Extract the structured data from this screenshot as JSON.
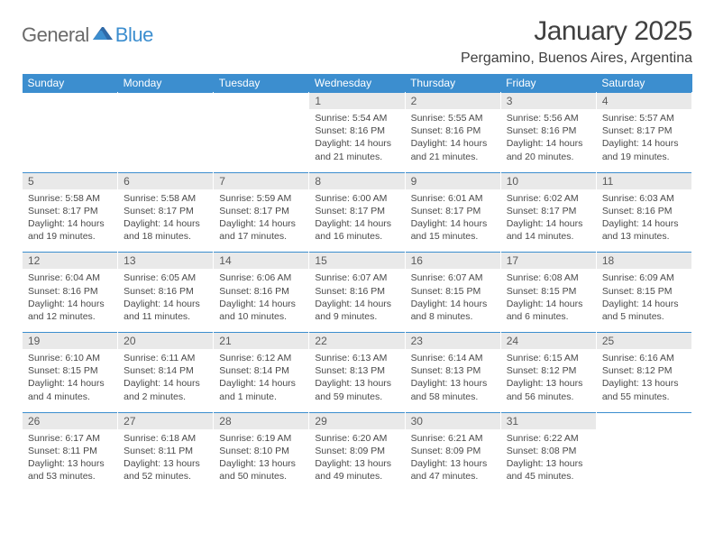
{
  "logo": {
    "text1": "General",
    "text2": "Blue"
  },
  "colors": {
    "header_bg": "#3c8ecf",
    "header_fg": "#ffffff",
    "daynum_bg": "#e9e9e9",
    "rule": "#3c8ecf",
    "text": "#4a4a4a",
    "logo_gray": "#6a6a6a",
    "logo_blue": "#3c8ecf"
  },
  "title": "January 2025",
  "location": "Pergamino, Buenos Aires, Argentina",
  "day_headers": [
    "Sunday",
    "Monday",
    "Tuesday",
    "Wednesday",
    "Thursday",
    "Friday",
    "Saturday"
  ],
  "weeks": [
    [
      null,
      null,
      null,
      {
        "n": "1",
        "sunrise": "5:54 AM",
        "sunset": "8:16 PM",
        "daylight": "14 hours and 21 minutes."
      },
      {
        "n": "2",
        "sunrise": "5:55 AM",
        "sunset": "8:16 PM",
        "daylight": "14 hours and 21 minutes."
      },
      {
        "n": "3",
        "sunrise": "5:56 AM",
        "sunset": "8:16 PM",
        "daylight": "14 hours and 20 minutes."
      },
      {
        "n": "4",
        "sunrise": "5:57 AM",
        "sunset": "8:17 PM",
        "daylight": "14 hours and 19 minutes."
      }
    ],
    [
      {
        "n": "5",
        "sunrise": "5:58 AM",
        "sunset": "8:17 PM",
        "daylight": "14 hours and 19 minutes."
      },
      {
        "n": "6",
        "sunrise": "5:58 AM",
        "sunset": "8:17 PM",
        "daylight": "14 hours and 18 minutes."
      },
      {
        "n": "7",
        "sunrise": "5:59 AM",
        "sunset": "8:17 PM",
        "daylight": "14 hours and 17 minutes."
      },
      {
        "n": "8",
        "sunrise": "6:00 AM",
        "sunset": "8:17 PM",
        "daylight": "14 hours and 16 minutes."
      },
      {
        "n": "9",
        "sunrise": "6:01 AM",
        "sunset": "8:17 PM",
        "daylight": "14 hours and 15 minutes."
      },
      {
        "n": "10",
        "sunrise": "6:02 AM",
        "sunset": "8:17 PM",
        "daylight": "14 hours and 14 minutes."
      },
      {
        "n": "11",
        "sunrise": "6:03 AM",
        "sunset": "8:16 PM",
        "daylight": "14 hours and 13 minutes."
      }
    ],
    [
      {
        "n": "12",
        "sunrise": "6:04 AM",
        "sunset": "8:16 PM",
        "daylight": "14 hours and 12 minutes."
      },
      {
        "n": "13",
        "sunrise": "6:05 AM",
        "sunset": "8:16 PM",
        "daylight": "14 hours and 11 minutes."
      },
      {
        "n": "14",
        "sunrise": "6:06 AM",
        "sunset": "8:16 PM",
        "daylight": "14 hours and 10 minutes."
      },
      {
        "n": "15",
        "sunrise": "6:07 AM",
        "sunset": "8:16 PM",
        "daylight": "14 hours and 9 minutes."
      },
      {
        "n": "16",
        "sunrise": "6:07 AM",
        "sunset": "8:15 PM",
        "daylight": "14 hours and 8 minutes."
      },
      {
        "n": "17",
        "sunrise": "6:08 AM",
        "sunset": "8:15 PM",
        "daylight": "14 hours and 6 minutes."
      },
      {
        "n": "18",
        "sunrise": "6:09 AM",
        "sunset": "8:15 PM",
        "daylight": "14 hours and 5 minutes."
      }
    ],
    [
      {
        "n": "19",
        "sunrise": "6:10 AM",
        "sunset": "8:15 PM",
        "daylight": "14 hours and 4 minutes."
      },
      {
        "n": "20",
        "sunrise": "6:11 AM",
        "sunset": "8:14 PM",
        "daylight": "14 hours and 2 minutes."
      },
      {
        "n": "21",
        "sunrise": "6:12 AM",
        "sunset": "8:14 PM",
        "daylight": "14 hours and 1 minute."
      },
      {
        "n": "22",
        "sunrise": "6:13 AM",
        "sunset": "8:13 PM",
        "daylight": "13 hours and 59 minutes."
      },
      {
        "n": "23",
        "sunrise": "6:14 AM",
        "sunset": "8:13 PM",
        "daylight": "13 hours and 58 minutes."
      },
      {
        "n": "24",
        "sunrise": "6:15 AM",
        "sunset": "8:12 PM",
        "daylight": "13 hours and 56 minutes."
      },
      {
        "n": "25",
        "sunrise": "6:16 AM",
        "sunset": "8:12 PM",
        "daylight": "13 hours and 55 minutes."
      }
    ],
    [
      {
        "n": "26",
        "sunrise": "6:17 AM",
        "sunset": "8:11 PM",
        "daylight": "13 hours and 53 minutes."
      },
      {
        "n": "27",
        "sunrise": "6:18 AM",
        "sunset": "8:11 PM",
        "daylight": "13 hours and 52 minutes."
      },
      {
        "n": "28",
        "sunrise": "6:19 AM",
        "sunset": "8:10 PM",
        "daylight": "13 hours and 50 minutes."
      },
      {
        "n": "29",
        "sunrise": "6:20 AM",
        "sunset": "8:09 PM",
        "daylight": "13 hours and 49 minutes."
      },
      {
        "n": "30",
        "sunrise": "6:21 AM",
        "sunset": "8:09 PM",
        "daylight": "13 hours and 47 minutes."
      },
      {
        "n": "31",
        "sunrise": "6:22 AM",
        "sunset": "8:08 PM",
        "daylight": "13 hours and 45 minutes."
      },
      null
    ]
  ],
  "labels": {
    "sunrise": "Sunrise:",
    "sunset": "Sunset:",
    "daylight": "Daylight:"
  }
}
